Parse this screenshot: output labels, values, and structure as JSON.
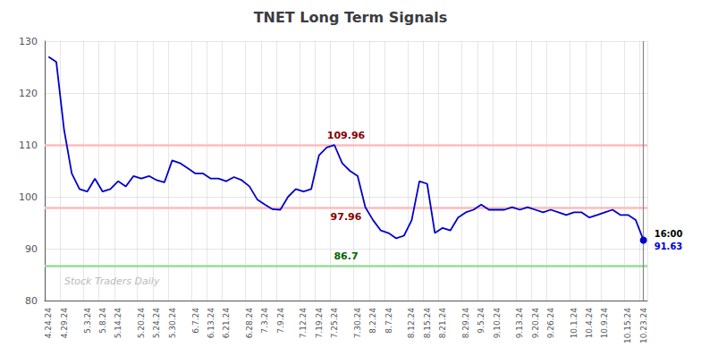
{
  "chart_data": {
    "type": "line",
    "title": "TNET Long Term Signals",
    "categories": [
      "4.24.24",
      null,
      "4.29.24",
      null,
      null,
      "5.3.24",
      null,
      "5.8.24",
      null,
      "5.14.24",
      null,
      null,
      "5.20.24",
      null,
      "5.24.24",
      null,
      "5.30.24",
      null,
      null,
      "6.7.24",
      null,
      "6.13.24",
      null,
      "6.21.24",
      null,
      null,
      "6.28.24",
      null,
      "7.3.24",
      null,
      "7.9.24",
      null,
      null,
      "7.12.24",
      null,
      "7.19.24",
      null,
      "7.25.24",
      null,
      null,
      "7.30.24",
      null,
      "8.2.24",
      null,
      "8.7.24",
      null,
      null,
      "8.12.24",
      null,
      "8.15.24",
      null,
      "8.21.24",
      null,
      null,
      "8.29.24",
      null,
      "9.5.24",
      null,
      "9.10.24",
      null,
      null,
      "9.13.24",
      null,
      "9.20.24",
      null,
      "9.26.24",
      null,
      null,
      "10.1.24",
      null,
      "10.4.24",
      null,
      "10.9.24",
      null,
      null,
      "10.15.24",
      null,
      "10.23.24"
    ],
    "values": [
      127.0,
      126.0,
      113.0,
      104.5,
      101.5,
      101.0,
      103.5,
      101.0,
      101.5,
      103.0,
      102.0,
      104.0,
      103.5,
      104.0,
      103.2,
      102.8,
      107.0,
      106.5,
      105.5,
      104.5,
      104.5,
      103.5,
      103.5,
      103.0,
      103.8,
      103.2,
      102.0,
      99.5,
      98.5,
      97.6,
      97.5,
      100.0,
      101.5,
      101.0,
      101.5,
      108.0,
      109.5,
      109.96,
      106.5,
      105.0,
      104.0,
      97.96,
      95.5,
      93.5,
      93.0,
      92.0,
      92.5,
      95.5,
      103.0,
      102.5,
      93.0,
      94.0,
      93.5,
      96.0,
      97.0,
      97.5,
      98.5,
      97.5,
      97.5,
      97.5,
      98.0,
      97.5,
      98.0,
      97.5,
      97.0,
      97.5,
      97.0,
      96.5,
      97.0,
      97.0,
      96.0,
      96.5,
      97.0,
      97.5,
      96.5,
      96.5,
      95.5,
      91.63
    ],
    "color": "#0000cc",
    "ylim": [
      80,
      130
    ],
    "yticks": [
      80,
      90,
      100,
      110,
      120,
      130
    ],
    "grid": true,
    "reference_lines": [
      {
        "value": 109.96,
        "label": "109.96",
        "color": "#ffbbbb",
        "label_color": "#880000"
      },
      {
        "value": 97.96,
        "label": "97.96",
        "color": "#ffbbbb",
        "label_color": "#880000"
      },
      {
        "value": 86.7,
        "label": "86.7",
        "color": "#99dd99",
        "label_color": "#006600"
      }
    ],
    "last_point_label": "16:00",
    "last_value_color": "#0000cc",
    "watermark": "Stock Traders Daily",
    "watermark_color": "#bbbbbb"
  }
}
